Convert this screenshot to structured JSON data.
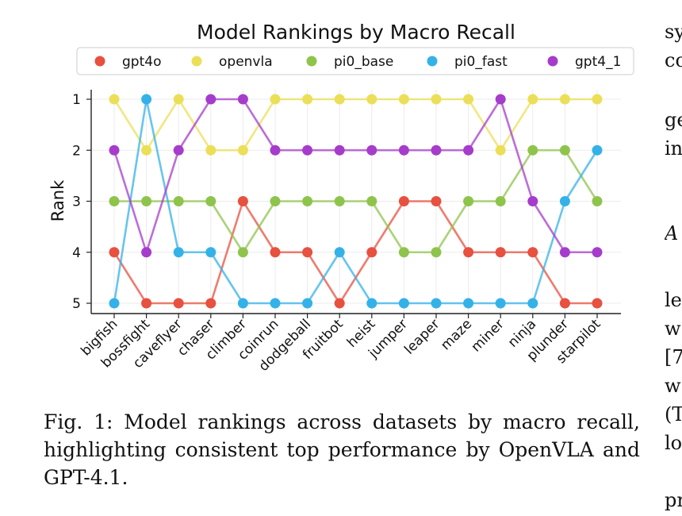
{
  "chart_data": {
    "type": "line",
    "title": "Model Rankings by Macro Recall",
    "xlabel": "",
    "ylabel": "Rank",
    "categories": [
      "bigfish",
      "bossfight",
      "caveflyer",
      "chaser",
      "climber",
      "coinrun",
      "dodgeball",
      "fruitbot",
      "heist",
      "jumper",
      "leaper",
      "maze",
      "miner",
      "ninja",
      "plunder",
      "starpilot"
    ],
    "yticks": [
      "1",
      "2",
      "3",
      "4",
      "5"
    ],
    "ylim": [
      1,
      5
    ],
    "y_inverted": true,
    "grid": true,
    "legend_position": "top",
    "series": [
      {
        "name": "gpt4o",
        "color": "#e8503f",
        "values": [
          4,
          5,
          5,
          5,
          3,
          4,
          4,
          5,
          4,
          3,
          3,
          4,
          4,
          4,
          5,
          5
        ]
      },
      {
        "name": "openvla",
        "color": "#ecdf58",
        "values": [
          1,
          2,
          1,
          2,
          2,
          1,
          1,
          1,
          1,
          1,
          1,
          1,
          2,
          1,
          1,
          1
        ]
      },
      {
        "name": "pi0_base",
        "color": "#8fc44c",
        "values": [
          3,
          3,
          3,
          3,
          4,
          3,
          3,
          3,
          3,
          4,
          4,
          3,
          3,
          2,
          2,
          3
        ]
      },
      {
        "name": "pi0_fast",
        "color": "#34b2e8",
        "values": [
          5,
          1,
          4,
          4,
          5,
          5,
          5,
          4,
          5,
          5,
          5,
          5,
          5,
          5,
          3,
          2
        ]
      },
      {
        "name": "gpt4_1",
        "color": "#a63ccb",
        "values": [
          2,
          4,
          2,
          1,
          1,
          2,
          2,
          2,
          2,
          2,
          2,
          2,
          1,
          3,
          4,
          4
        ]
      }
    ]
  },
  "caption": "Fig. 1: Model rankings across datasets by macro recall, highlighting consistent top performance by OpenVLA and GPT-4.1.",
  "side_text": [
    "sy",
    "co",
    "ge",
    "in",
    "A",
    "le",
    "w",
    "[7",
    "w",
    "(T",
    "lo",
    "pr"
  ]
}
